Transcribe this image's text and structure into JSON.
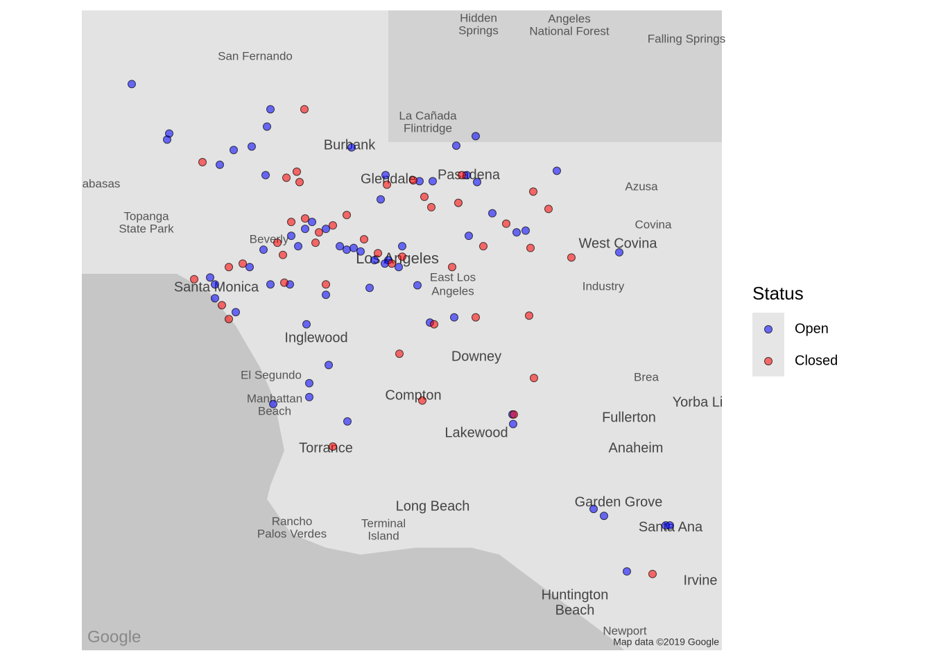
{
  "chart_data": {
    "type": "scatter",
    "xlim": [
      -118.75,
      -117.827
    ],
    "ylim": [
      33.612,
      34.35
    ],
    "legend_title": "Status",
    "legend_position": "right",
    "series": [
      {
        "name": "Open",
        "color": "#0000ff",
        "x": [
          -118.678,
          -118.624,
          -118.627,
          -118.531,
          -118.505,
          -118.478,
          -118.483,
          -118.551,
          -118.485,
          -118.361,
          -118.21,
          -118.182,
          -118.065,
          -118.312,
          -118.263,
          -118.244,
          -118.195,
          -118.18,
          -118.319,
          -118.158,
          -118.11,
          -118.123,
          -118.192,
          -117.975,
          -118.426,
          -118.394,
          -118.422,
          -118.422,
          -118.474,
          -118.367,
          -118.128,
          -118.129,
          -118.012,
          -117.997,
          -117.908,
          -117.902,
          -117.964,
          -118.266,
          -118.213,
          -118.248,
          -118.398,
          -118.448,
          -118.438,
          -118.368,
          -118.358,
          -118.348,
          -118.308,
          -118.293,
          -118.288,
          -118.565,
          -118.558,
          -118.508,
          -118.478,
          -118.528,
          -118.45,
          -118.398,
          -118.335,
          -118.428,
          -118.418,
          -118.378,
          -118.328,
          -118.313,
          -118.488,
          -118.558
        ],
        "y": [
          34.265,
          34.208,
          34.201,
          34.189,
          34.193,
          34.236,
          34.216,
          34.172,
          34.16,
          34.192,
          34.194,
          34.205,
          34.165,
          34.16,
          34.153,
          34.153,
          34.16,
          34.152,
          34.132,
          34.116,
          34.096,
          34.094,
          34.09,
          34.071,
          33.988,
          33.941,
          33.92,
          33.904,
          33.896,
          33.876,
          33.873,
          33.884,
          33.775,
          33.767,
          33.756,
          33.756,
          33.703,
          34.033,
          33.996,
          33.99,
          34.098,
          34.09,
          34.078,
          34.074,
          34.076,
          34.072,
          34.062,
          34.054,
          34.078,
          34.042,
          34.034,
          34.054,
          34.034,
          34.002,
          34.034,
          34.022,
          34.03,
          34.098,
          34.106,
          34.078,
          34.062,
          34.058,
          34.074,
          34.018
        ]
      },
      {
        "name": "Closed",
        "color": "#ff0000",
        "x": [
          -118.429,
          -118.576,
          -118.455,
          -118.436,
          -118.44,
          -118.31,
          -118.272,
          -118.256,
          -118.246,
          -118.207,
          -118.202,
          -118.099,
          -118.077,
          -118.138,
          -118.171,
          -118.103,
          -118.044,
          -118.216,
          -118.588,
          -118.548,
          -118.538,
          -118.46,
          -118.448,
          -118.428,
          -118.408,
          -118.388,
          -118.413,
          -118.468,
          -118.288,
          -118.303,
          -118.323,
          -118.398,
          -118.458,
          -118.292,
          -118.259,
          -118.127,
          -118.388,
          -117.927,
          -118.105,
          -118.182,
          -118.242,
          -118.538,
          -118.518,
          -118.098,
          -118.368,
          -118.343
        ],
        "y": [
          34.236,
          34.175,
          34.157,
          34.152,
          34.164,
          34.149,
          34.154,
          34.135,
          34.123,
          34.128,
          34.16,
          34.141,
          34.121,
          34.104,
          34.078,
          34.076,
          34.065,
          34.054,
          34.04,
          34.01,
          33.994,
          34.068,
          34.106,
          34.11,
          34.094,
          34.102,
          34.082,
          34.082,
          34.066,
          34.058,
          34.07,
          34.034,
          34.036,
          33.954,
          33.9,
          33.884,
          33.847,
          33.7,
          33.998,
          33.996,
          33.988,
          34.054,
          34.058,
          33.926,
          34.114,
          34.086
        ]
      }
    ]
  },
  "map": {
    "labels": [
      "San Fernando",
      "Hidden",
      "Springs",
      "Angeles",
      "National Forest",
      "Falling Springs",
      "La Cañada",
      "Flintridge",
      "Burbank",
      "Glendale",
      "Pasadena",
      "Azusa",
      "Covina",
      "West Covina",
      "abasas",
      "Topanga",
      "State Park",
      "Beverly",
      "Los Angeles",
      "East Los",
      "Angeles",
      "Industry",
      "Santa Monica",
      "Inglewood",
      "Downey",
      "El Segundo",
      "Manhattan",
      "Beach",
      "Compton",
      "Brea",
      "Yorba Li",
      "Fullerton",
      "Lakewood",
      "Anaheim",
      "Torrance",
      "Long Beach",
      "Garden Grove",
      "Rancho",
      "Palos Verdes",
      "Terminal",
      "Island",
      "Santa Ana",
      "Irvine",
      "Huntington",
      "Beach",
      "Newport",
      "Google",
      "Map data ©2019 Google"
    ]
  }
}
